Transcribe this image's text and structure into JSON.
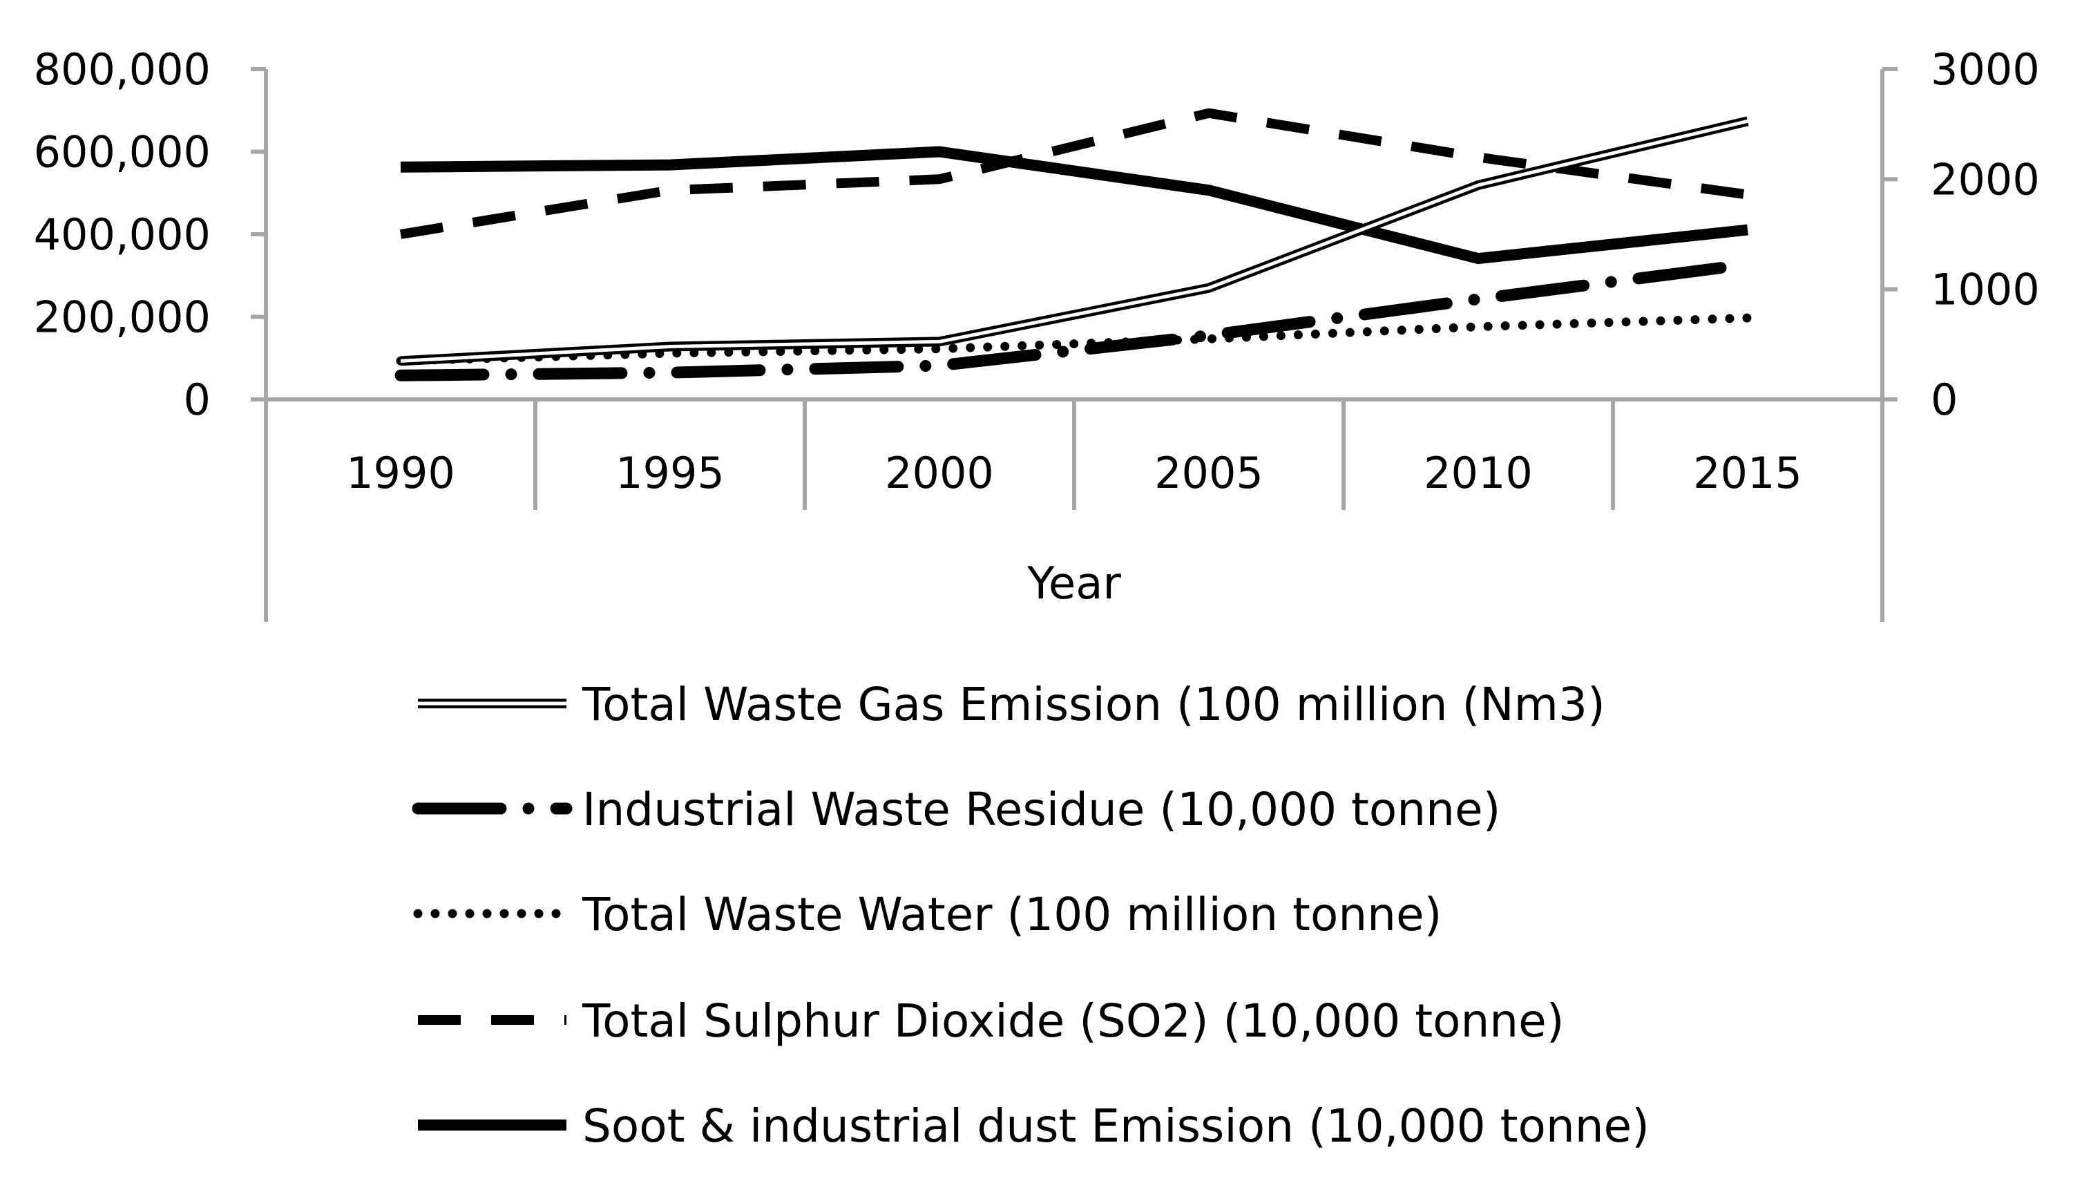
{
  "chart_data": {
    "type": "line",
    "title": "",
    "xlabel": "Year",
    "ylabel": "",
    "y2label": "",
    "categories": [
      "1990",
      "1995",
      "2000",
      "2005",
      "2010",
      "2015"
    ],
    "ylim": [
      0,
      800000
    ],
    "y2lim": [
      0,
      3000
    ],
    "yticks": [
      0,
      200000,
      400000,
      600000,
      800000
    ],
    "yticklabels": [
      "0",
      "200,000",
      "400,000",
      "600,000",
      "800,000"
    ],
    "y2ticks": [
      0,
      1000,
      2000,
      3000
    ],
    "y2ticklabels": [
      "0",
      "1000",
      "2000",
      "3000"
    ],
    "grid": false,
    "legend_position": "bottom",
    "series": [
      {
        "name": "Total Waste Gas Emission (100 million (Nm3)",
        "axis": "left",
        "style": "double",
        "values": [
          93000,
          128000,
          140000,
          270000,
          519000,
          674000
        ]
      },
      {
        "name": "Industrial Waste Residue (10,000 tonne)",
        "axis": "left",
        "style": "longdashdot",
        "values": [
          58000,
          65000,
          82000,
          155000,
          243000,
          327000
        ]
      },
      {
        "name": "Total Waste Water (100 million tonne)",
        "axis": "right",
        "style": "dotted",
        "values": [
          350,
          420,
          460,
          550,
          660,
          740
        ]
      },
      {
        "name": "Total Sulphur Dioxide (SO2) (10,000 tonne)",
        "axis": "right",
        "style": "dashed",
        "values": [
          1500,
          1900,
          2000,
          2600,
          2200,
          1860
        ]
      },
      {
        "name": "Soot & industrial dust Emission (10,000 tonne)",
        "axis": "right",
        "style": "solid",
        "values": [
          2110,
          2130,
          2250,
          1900,
          1280,
          1540
        ]
      }
    ]
  }
}
